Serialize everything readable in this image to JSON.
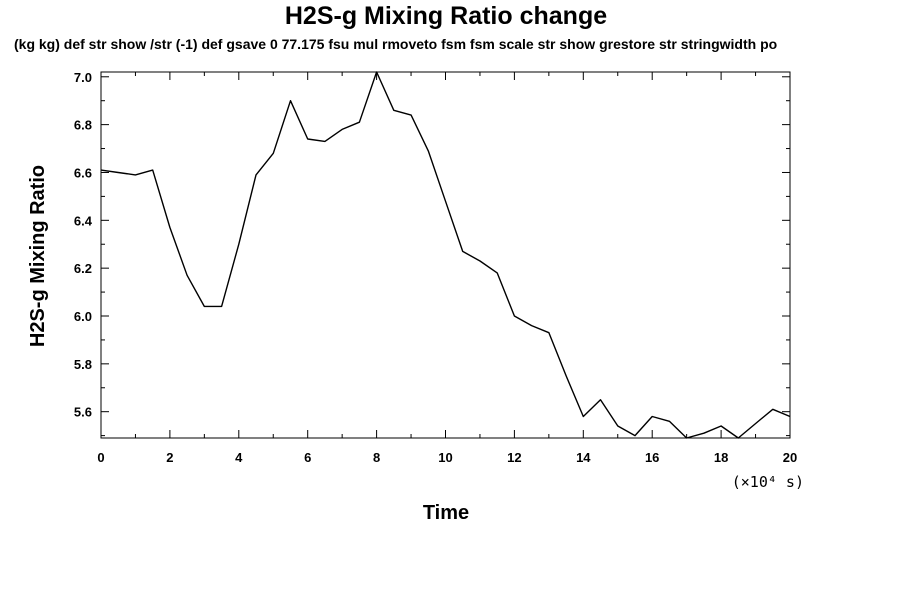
{
  "chart_data": {
    "type": "line",
    "title": "H2S-g Mixing Ratio change",
    "subtitle": "(kg kg) def str show /str (-1) def gsave 0 77.175 fsu mul rmoveto fsm fsm scale str show grestore str stringwidth po",
    "xlabel": "Time",
    "ylabel": "H2S-g Mixing Ratio",
    "x_unit": "(×10⁴ s)",
    "xlim": [
      0,
      20
    ],
    "ylim": [
      5.49,
      7.02
    ],
    "x_ticks": [
      0,
      2,
      4,
      6,
      8,
      10,
      12,
      14,
      16,
      18,
      20
    ],
    "x_tick_labels": [
      "0",
      "2",
      "4",
      "6",
      "8",
      "10",
      "12",
      "14",
      "16",
      "18",
      "20"
    ],
    "y_ticks": [
      5.6,
      5.8,
      6.0,
      6.2,
      6.4,
      6.6,
      6.8,
      7.0
    ],
    "y_tick_labels": [
      "5.6",
      "5.8",
      "6.0",
      "6.2",
      "6.4",
      "6.6",
      "6.8",
      "7.0"
    ],
    "grid": false,
    "series": [
      {
        "x": [
          0,
          0.5,
          1,
          1.5,
          2,
          2.5,
          3,
          3.5,
          4,
          4.5,
          5,
          5.5,
          6,
          6.5,
          7,
          7.5,
          8,
          8.5,
          9,
          9.5,
          10,
          10.5,
          11,
          11.5,
          12,
          12.5,
          13,
          13.5,
          14,
          14.5,
          15,
          15.5,
          16,
          16.5,
          17,
          17.5,
          18,
          18.5,
          19,
          19.5,
          20
        ],
        "values": [
          6.61,
          6.6,
          6.59,
          6.61,
          6.37,
          6.17,
          6.04,
          6.04,
          6.3,
          6.59,
          6.68,
          6.9,
          6.74,
          6.73,
          6.78,
          6.81,
          7.02,
          6.86,
          6.84,
          6.69,
          6.48,
          6.27,
          6.23,
          6.18,
          6.0,
          5.96,
          5.93,
          5.75,
          5.58,
          5.65,
          5.54,
          5.5,
          5.58,
          5.56,
          5.49,
          5.51,
          5.54,
          5.49,
          5.55,
          5.61,
          5.58
        ]
      }
    ],
    "line_color": "#000000"
  }
}
